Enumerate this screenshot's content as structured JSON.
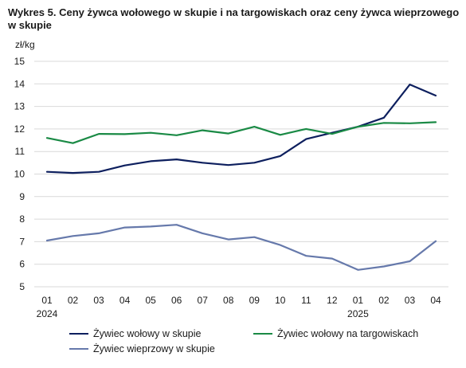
{
  "title": "Wykres 5. Ceny żywca wołowego w skupie i na targowiskach oraz ceny żywca wieprzowego w skupie",
  "chart_data": {
    "type": "line",
    "ylabel": "zł/kg",
    "ylim": [
      5,
      15
    ],
    "yticks": [
      "5",
      "6",
      "7",
      "8",
      "9",
      "10",
      "11",
      "12",
      "13",
      "14",
      "15"
    ],
    "categories": [
      "01",
      "02",
      "03",
      "04",
      "05",
      "06",
      "07",
      "08",
      "09",
      "10",
      "11",
      "12",
      "01",
      "02",
      "03",
      "04"
    ],
    "year_labels": [
      {
        "index": 0,
        "label": "2024"
      },
      {
        "index": 12,
        "label": "2025"
      }
    ],
    "grid": "horizontal",
    "legend_position": "bottom",
    "series": [
      {
        "name": "Żywiec wołowy w skupie",
        "color": "#0d1f5e",
        "values": [
          10.1,
          10.05,
          10.1,
          10.38,
          10.57,
          10.65,
          10.5,
          10.4,
          10.5,
          10.8,
          11.55,
          11.83,
          12.1,
          12.5,
          13.97,
          13.48
        ]
      },
      {
        "name": "Żywiec wołowy na targowiskach",
        "color": "#1a8a45",
        "values": [
          11.6,
          11.37,
          11.78,
          11.77,
          11.83,
          11.72,
          11.94,
          11.8,
          12.1,
          11.74,
          12.0,
          11.78,
          12.1,
          12.27,
          12.25,
          12.3
        ]
      },
      {
        "name": "Żywiec wieprzowy w skupie",
        "color": "#6679ab",
        "values": [
          7.05,
          7.25,
          7.37,
          7.63,
          7.67,
          7.75,
          7.37,
          7.1,
          7.2,
          6.85,
          6.37,
          6.25,
          5.75,
          5.9,
          6.13,
          7.02
        ]
      }
    ]
  }
}
